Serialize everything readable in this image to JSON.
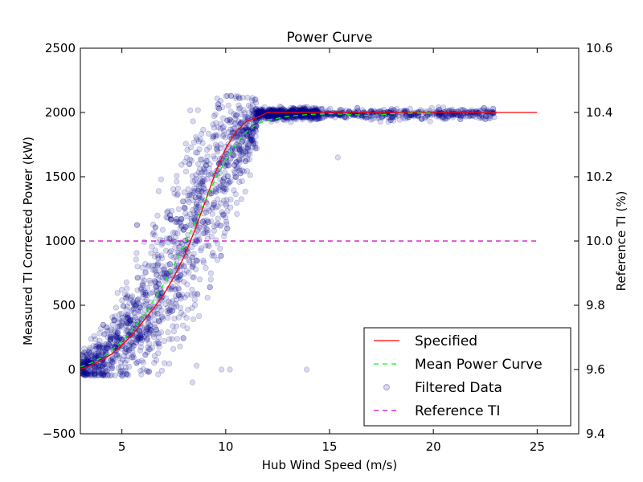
{
  "chart_data": {
    "type": "scatter",
    "title": "Power Curve",
    "xlabel": "Hub Wind Speed (m/s)",
    "ylabel": "Measured TI Corrected Power (kW)",
    "y2label": "Reference TI (%)",
    "xlim": [
      3,
      27
    ],
    "ylim": [
      -500,
      2500
    ],
    "y2lim": [
      9.4,
      10.6
    ],
    "x_ticks": [
      5,
      10,
      15,
      20,
      25
    ],
    "y_ticks": [
      -500,
      0,
      500,
      1000,
      1500,
      2000,
      2500
    ],
    "y2_ticks": [
      9.4,
      9.6,
      9.8,
      10.0,
      10.2,
      10.4,
      10.6
    ],
    "y2_tick_labels": [
      "9.4",
      "9.6",
      "9.8",
      "10.0",
      "10.2",
      "10.4",
      "10.6"
    ],
    "grid": false,
    "legend_position": "bottom-right",
    "series": [
      {
        "name": "Specified",
        "type": "line",
        "style": "solid",
        "color": "#ff0000",
        "x": [
          3,
          3.5,
          4,
          4.5,
          5,
          5.5,
          6,
          6.5,
          7,
          7.5,
          8,
          8.5,
          9,
          9.5,
          10,
          10.5,
          11,
          11.5,
          12,
          13,
          15,
          20,
          25
        ],
        "y": [
          0,
          30,
          70,
          120,
          190,
          270,
          370,
          470,
          580,
          720,
          880,
          1080,
          1300,
          1530,
          1720,
          1850,
          1930,
          1960,
          2000,
          2000,
          2000,
          2000,
          2000
        ]
      },
      {
        "name": "Mean Power Curve",
        "type": "line",
        "style": "dashed",
        "color": "#00ff00",
        "x": [
          3,
          3.5,
          4,
          4.5,
          5,
          5.5,
          6,
          6.5,
          7,
          7.5,
          8,
          8.5,
          9,
          9.5,
          10,
          10.5,
          11,
          11.5,
          12,
          13,
          14,
          15,
          16,
          17,
          18,
          19,
          20
        ],
        "y": [
          20,
          50,
          90,
          150,
          220,
          310,
          410,
          530,
          660,
          810,
          970,
          1140,
          1310,
          1480,
          1630,
          1760,
          1850,
          1910,
          1940,
          1970,
          1985,
          1990,
          1985,
          1975,
          1990,
          1995,
          1995
        ]
      },
      {
        "name": "Filtered Data",
        "type": "scatter",
        "color": "#00008b",
        "alpha": 0.15,
        "x_range": [
          3,
          23
        ],
        "points": [
          [
            8.4,
            -100
          ],
          [
            6.3,
            -20
          ],
          [
            13.9,
            0
          ],
          [
            8.6,
            30
          ],
          [
            9.8,
            0
          ],
          [
            15.4,
            1650
          ],
          [
            10.2,
            0
          ],
          [
            5.9,
            -10
          ]
        ]
      },
      {
        "name": "Reference TI",
        "type": "line",
        "style": "dashed",
        "color": "#cc00cc",
        "axis": "right",
        "x": [
          3,
          25
        ],
        "y": [
          10.0,
          10.0
        ]
      }
    ]
  }
}
